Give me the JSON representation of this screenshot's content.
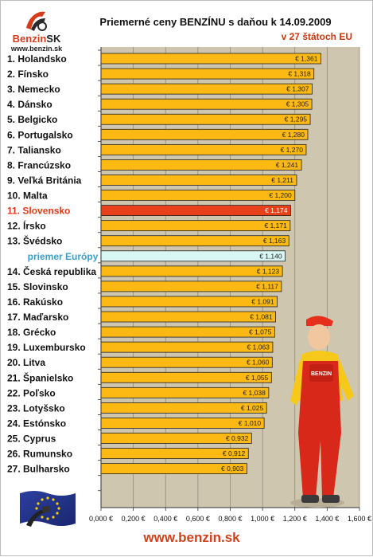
{
  "logo": {
    "word_main": "Benzin",
    "word_suffix": "SK",
    "url": "www.benzin.sk"
  },
  "title": "Priemerné ceny BENZÍNU s daňou k 14.09.2009",
  "subtitle": "v 27 štátoch EU",
  "website": "www.benzin.sk",
  "colors": {
    "bar": "#fdb913",
    "bar_highlight": "#e8401a",
    "bar_average": "#d8f7f4",
    "plot_background": "#cfc6b0",
    "label_highlight": "#e03a1a",
    "label_average": "#3aa0c8"
  },
  "icons": [
    "benzin-logo-icon",
    "eu-flag-icon",
    "fuel-worker-mascot-icon"
  ],
  "chart_data": {
    "type": "bar",
    "orientation": "horizontal",
    "title": "Priemerné ceny BENZÍNU s daňou k 14.09.2009",
    "subtitle": "v 27 štátoch EU",
    "xlim": [
      0,
      1.6
    ],
    "x_ticks": [
      "0,000 €",
      "0,200 €",
      "0,400 €",
      "0,600 €",
      "0,800 €",
      "1,000 €",
      "1,200 €",
      "1,400 €",
      "1,600 €"
    ],
    "grid": "vertical",
    "categories": [
      "1. Holandsko",
      "2. Fínsko",
      "3. Nemecko",
      "4. Dánsko",
      "5. Belgicko",
      "6. Portugalsko",
      "7. Taliansko",
      "8. Francúzsko",
      "9. Veľká Británia",
      "10. Malta",
      "11. Slovensko",
      "12. Írsko",
      "13. Švédsko",
      "priemer Európy",
      "14. Česká republika",
      "15. Slovinsko",
      "16. Rakúsko",
      "17. Maďarsko",
      "18. Grécko",
      "19. Luxembursko",
      "20. Litva",
      "21. Španielsko",
      "22. Poľsko",
      "23. Lotyšsko",
      "24. Estónsko",
      "25. Cyprus",
      "26. Rumunsko",
      "27. Bulharsko"
    ],
    "values": [
      1.361,
      1.318,
      1.307,
      1.305,
      1.295,
      1.28,
      1.27,
      1.241,
      1.211,
      1.2,
      1.174,
      1.171,
      1.163,
      1.14,
      1.123,
      1.117,
      1.091,
      1.081,
      1.075,
      1.063,
      1.06,
      1.055,
      1.038,
      1.025,
      1.01,
      0.932,
      0.912,
      0.903
    ],
    "value_labels": [
      "€ 1,361",
      "€ 1,318",
      "€ 1,307",
      "€ 1,305",
      "€ 1,295",
      "€ 1,280",
      "€ 1,270",
      "€ 1,241",
      "€ 1,211",
      "€ 1,200",
      "€ 1,174",
      "€ 1,171",
      "€ 1,163",
      "€ 1,140",
      "€ 1,123",
      "€ 1,117",
      "€ 1,091",
      "€ 1,081",
      "€ 1,075",
      "€ 1,063",
      "€ 1,060",
      "€ 1,055",
      "€ 1,038",
      "€ 1,025",
      "€ 1,010",
      "€ 0,932",
      "€ 0,912",
      "€ 0,903"
    ],
    "highlight_index": 10,
    "average_index": 13
  }
}
